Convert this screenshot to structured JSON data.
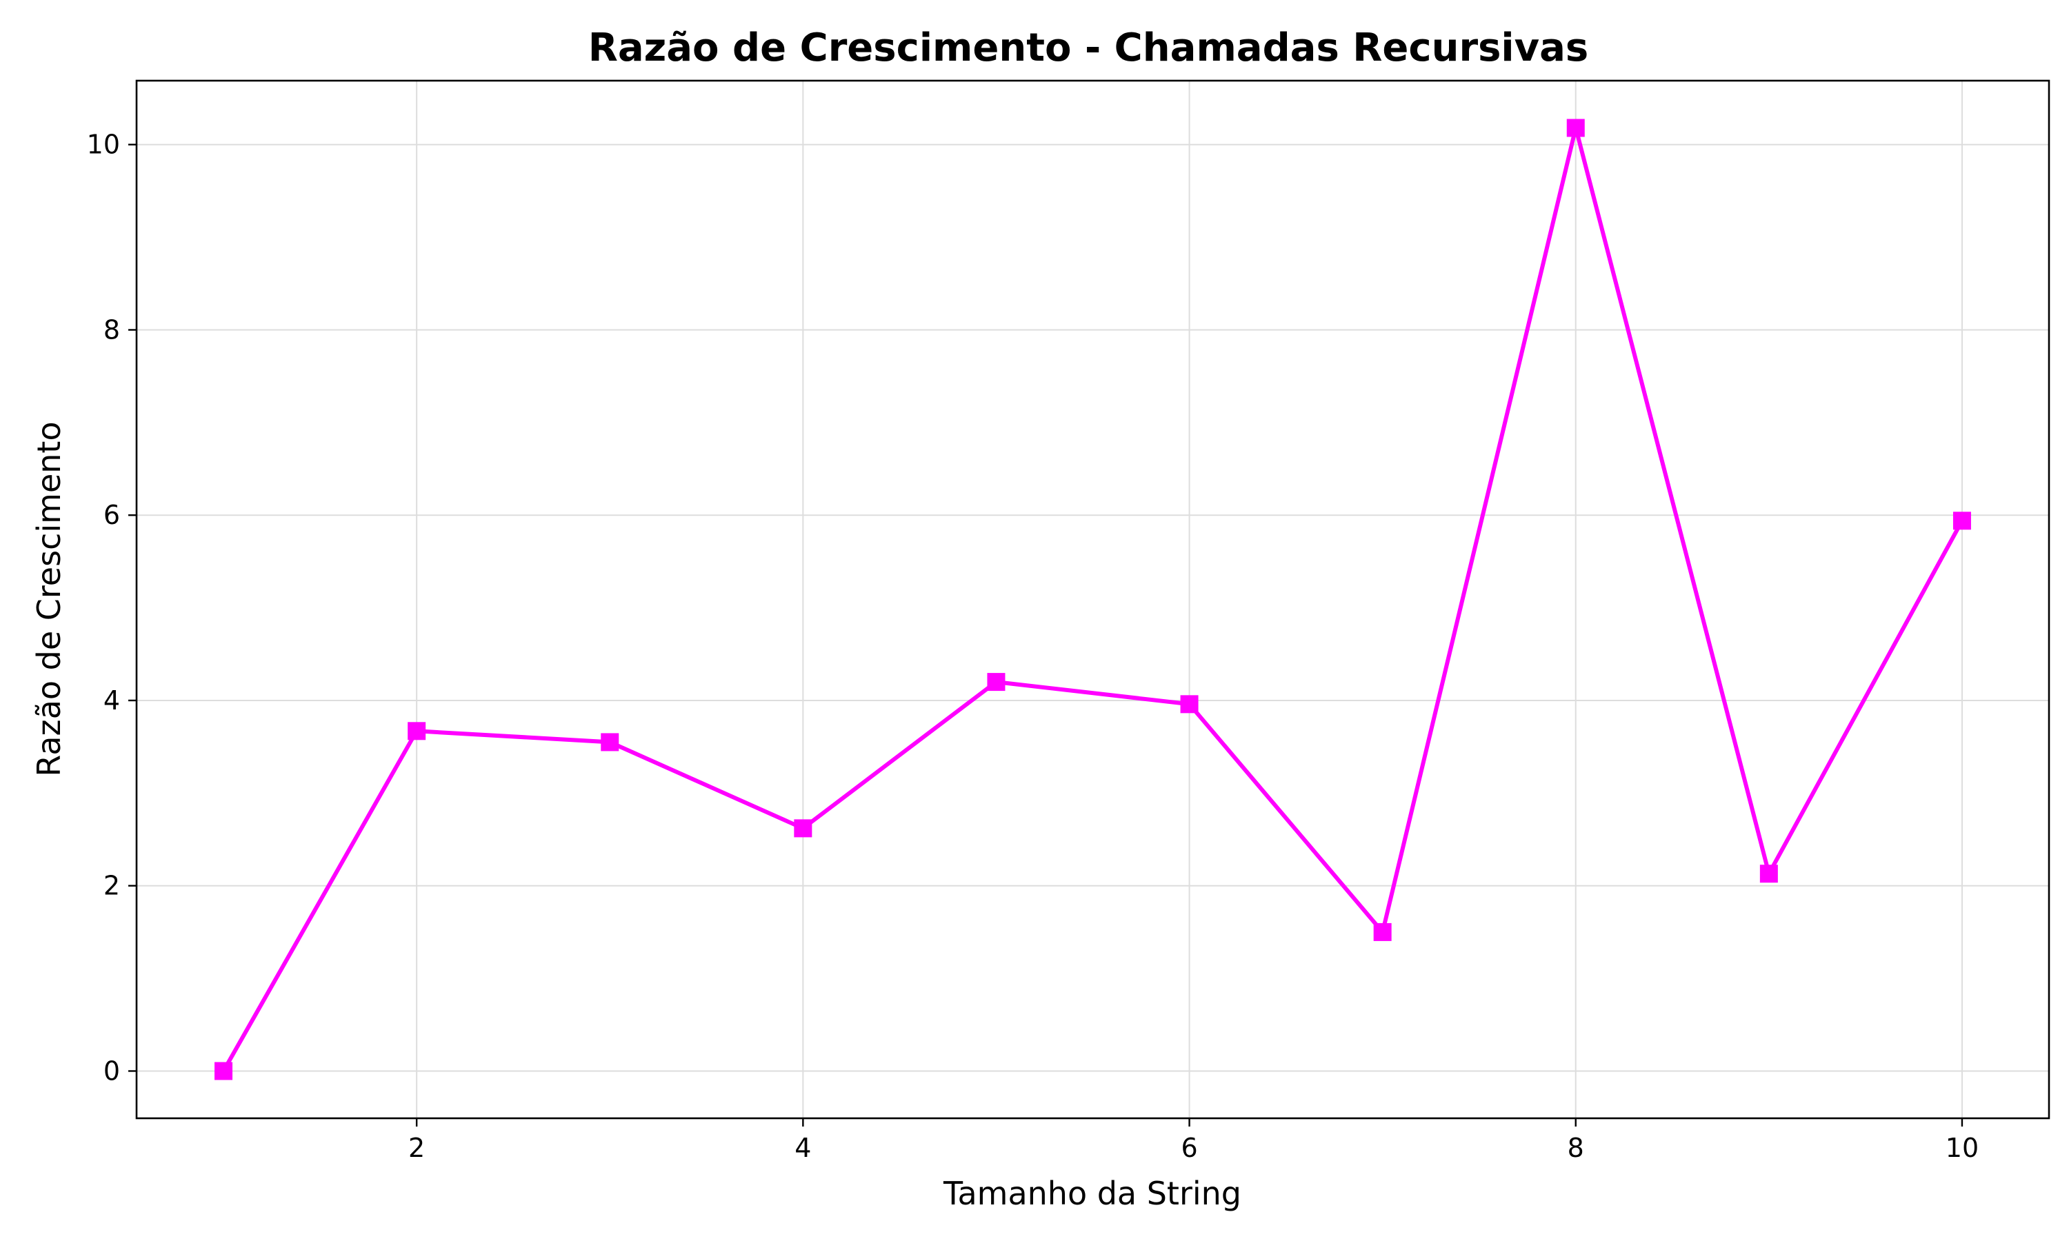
{
  "chart_data": {
    "type": "line",
    "title": "Razão de Crescimento - Chamadas Recursivas",
    "xlabel": "Tamanho da String",
    "ylabel": "Razão de Crescimento",
    "x": [
      1,
      2,
      3,
      4,
      5,
      6,
      7,
      8,
      9,
      10
    ],
    "series": [
      {
        "values": [
          0.0,
          3.67,
          3.55,
          2.62,
          4.2,
          3.96,
          1.5,
          10.18,
          2.13,
          5.94
        ],
        "color": "#ff00ff",
        "marker": "square"
      }
    ],
    "xlim": [
      0.55,
      10.45
    ],
    "ylim": [
      -0.51,
      10.69
    ],
    "xticks": [
      2,
      4,
      6,
      8,
      10
    ],
    "yticks": [
      0,
      2,
      4,
      6,
      8,
      10
    ],
    "grid": true,
    "colors": {
      "line": "#ff00ff",
      "grid": "#dddddd",
      "axes": "#000000"
    }
  }
}
